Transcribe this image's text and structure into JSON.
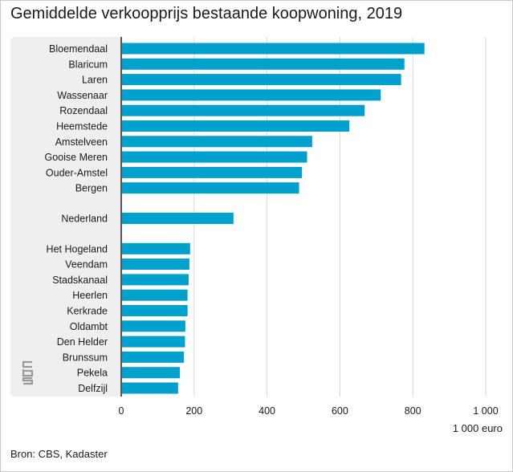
{
  "title": "Gemiddelde verkoopprijs bestaande koopwoning, 2019",
  "source": "Bron: CBS, Kadaster",
  "unit_label": "1 000 euro",
  "logo": "cbs-logo",
  "colors": {
    "bar": "#00a1cd",
    "panel": "#efefef",
    "grid": "#d9d9d9",
    "axis": "#555555"
  },
  "chart_data": {
    "type": "bar",
    "orientation": "horizontal",
    "title": "Gemiddelde verkoopprijs bestaande koopwoning, 2019",
    "xlabel": "1 000 euro",
    "xlim": [
      0,
      1000
    ],
    "xticks": [
      0,
      200,
      400,
      600,
      800,
      1000
    ],
    "xtick_labels": [
      "0",
      "200",
      "400",
      "600",
      "800",
      "1 000"
    ],
    "grid": true,
    "categories": [
      "Bloemendaal",
      "Blaricum",
      "Laren",
      "Wassenaar",
      "Rozendaal",
      "Heemstede",
      "Amstelveen",
      "Gooise Meren",
      "Ouder-Amstel",
      "Bergen",
      "Nederland",
      "Het Hogeland",
      "Veendam",
      "Stadskanaal",
      "Heerlen",
      "Kerkrade",
      "Oldambt",
      "Den Helder",
      "Brunssum",
      "Pekela",
      "Delfzijl"
    ],
    "values": [
      832,
      777,
      768,
      712,
      668,
      626,
      524,
      510,
      496,
      488,
      308,
      189,
      187,
      185,
      182,
      182,
      176,
      175,
      172,
      161,
      156
    ]
  }
}
